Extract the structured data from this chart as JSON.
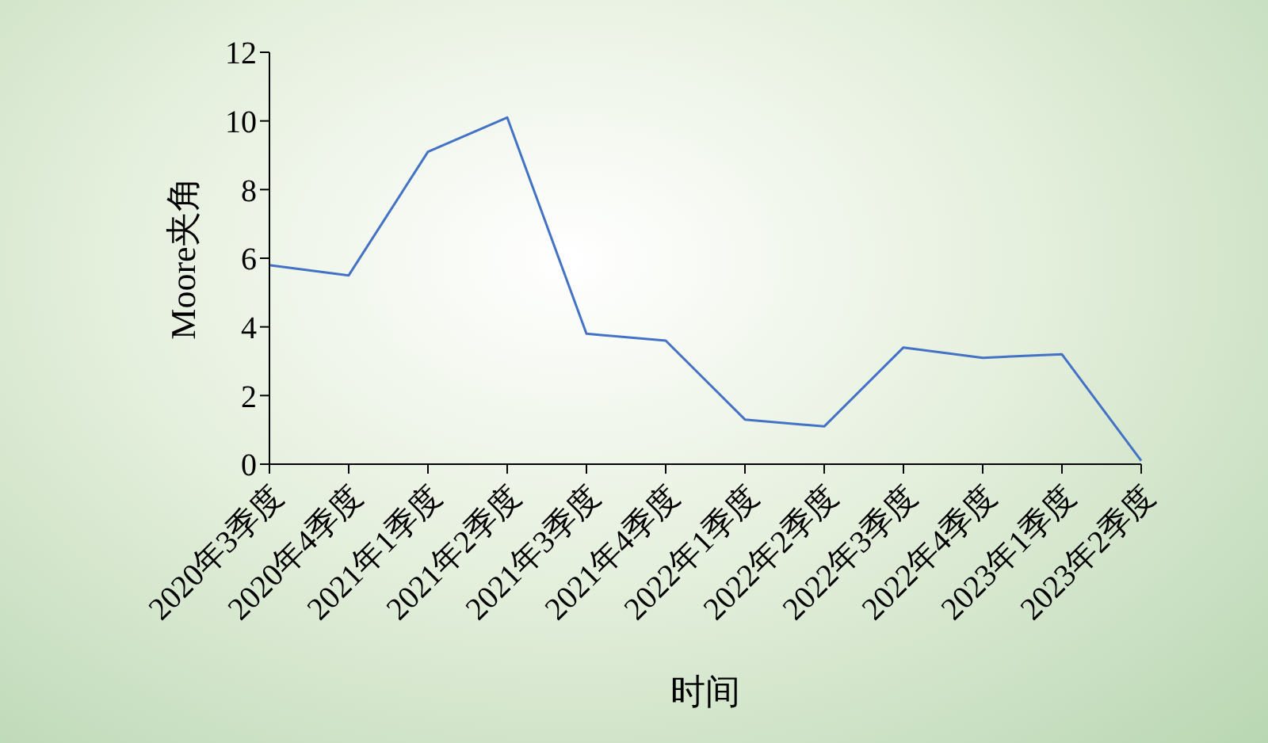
{
  "chart_data": {
    "type": "line",
    "xlabel": "时间",
    "ylabel": "Moore夹角",
    "categories": [
      "2020年3季度",
      "2020年4季度",
      "2021年1季度",
      "2021年2季度",
      "2021年3季度",
      "2021年4季度",
      "2022年1季度",
      "2022年2季度",
      "2022年3季度",
      "2022年4季度",
      "2023年1季度",
      "2023年2季度"
    ],
    "series": [
      {
        "color": "#4472c4",
        "values": [
          5.8,
          5.5,
          9.1,
          10.1,
          3.8,
          3.6,
          1.3,
          1.1,
          3.4,
          3.1,
          3.2,
          0.1
        ]
      }
    ],
    "ylim": [
      0,
      12
    ],
    "yticks": [
      0,
      2,
      4,
      6,
      8,
      10,
      12
    ],
    "grid": false,
    "legend": false,
    "marker": "none",
    "line_style": "solid"
  }
}
